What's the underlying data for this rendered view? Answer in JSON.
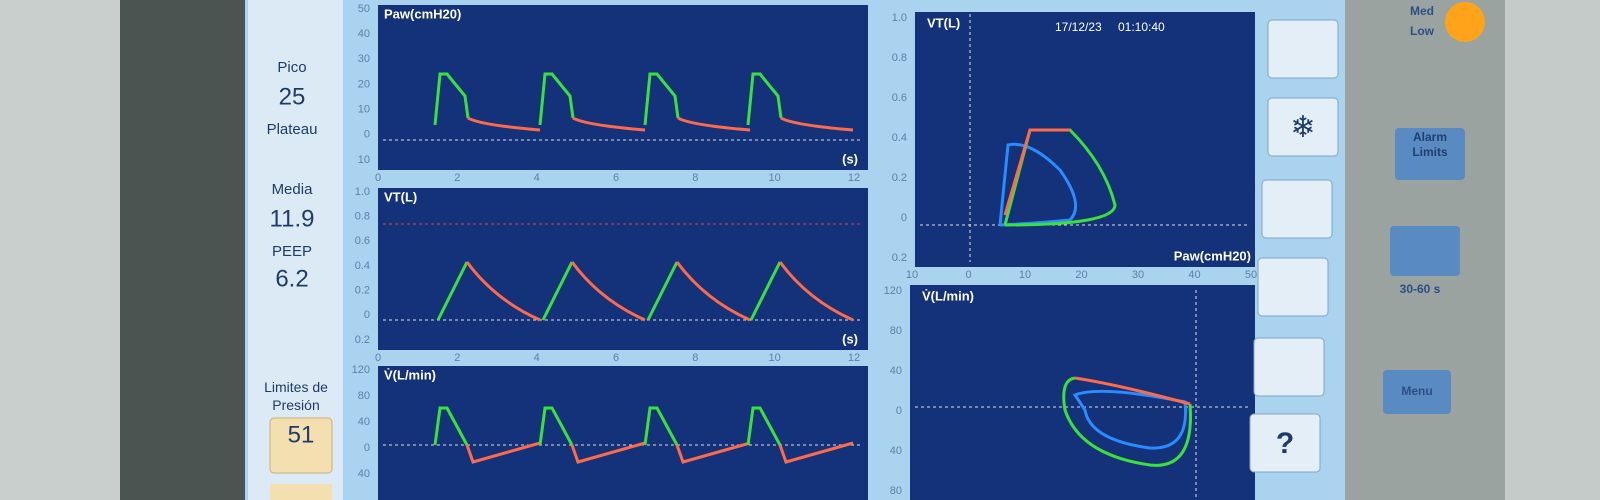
{
  "left_panel": {
    "peak_label": "Pico",
    "peak_value": "25",
    "plateau_label": "Plateau",
    "mean_label": "Media",
    "mean_value": "11.9",
    "peep_label": "PEEP",
    "peep_value": "6.2",
    "pressure_limit_label": "Limites de Presión",
    "pressure_limit_value": "51"
  },
  "waveforms": [
    {
      "title": "Paw(cmH20)",
      "y_labels": [
        "50",
        "40",
        "30",
        "20",
        "10",
        "0",
        "10"
      ],
      "x_labels": [
        "0",
        "2",
        "4",
        "6",
        "8",
        "10",
        "12"
      ],
      "x_unit": "(s)"
    },
    {
      "title": "VT(L)",
      "y_labels": [
        "1.0",
        "0.8",
        "0.6",
        "0.4",
        "0.2",
        "0",
        "0.2"
      ],
      "x_labels": [
        "0",
        "2",
        "4",
        "6",
        "8",
        "10",
        "12"
      ],
      "x_unit": "(s)"
    },
    {
      "title": "V̇(L/min)",
      "y_labels": [
        "120",
        "80",
        "40",
        "0",
        "40"
      ]
    }
  ],
  "loops": [
    {
      "title": "VT(L)",
      "y_labels": [
        "1.0",
        "0.8",
        "0.6",
        "0.4",
        "0.2",
        "0",
        "0.2"
      ],
      "timestamp_date": "17/12/23",
      "timestamp_time": "01:10:40",
      "x_title": "Paw(cmH20)",
      "x_labels": [
        "10",
        "0",
        "10",
        "20",
        "30",
        "40",
        "50"
      ]
    },
    {
      "title": "V̇(L/min)",
      "y_labels": [
        "120",
        "80",
        "40",
        "0",
        "40",
        "80"
      ]
    }
  ],
  "side_buttons": {
    "help": "?"
  },
  "hardware": {
    "indicator_top": "Med",
    "indicator_bottom": "Low",
    "alarm_button": "Alarm Limits",
    "silence_caption": "30-60 s",
    "menu_button": "Menu"
  }
}
